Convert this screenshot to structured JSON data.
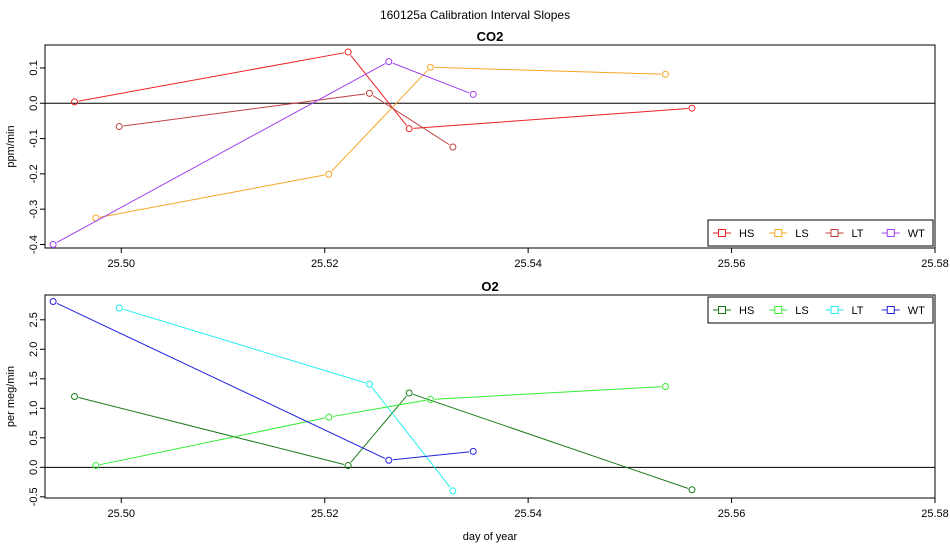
{
  "figure": {
    "title": "160125a   Calibration Interval Slopes"
  },
  "chart_data": [
    {
      "type": "line",
      "title": "CO2",
      "xlabel": "",
      "ylabel": "ppm/min",
      "xlim": [
        25.4925,
        25.58
      ],
      "ylim": [
        -0.41,
        0.165
      ],
      "xticks": [
        25.5,
        25.52,
        25.54,
        25.56,
        25.58
      ],
      "xtick_labels": [
        "25.50",
        "25.52",
        "25.54",
        "25.56",
        "25.58"
      ],
      "yticks": [
        -0.4,
        -0.3,
        -0.2,
        -0.1,
        0.0,
        0.1
      ],
      "ytick_labels": [
        "-0.4",
        "-0.3",
        "-0.2",
        "-0.1",
        "0.0",
        "0.1"
      ],
      "hline": 0,
      "legend_position": "bottom-right",
      "series": [
        {
          "name": "HS",
          "color": "#ee2222",
          "points": [
            [
              25.4954,
              0.004
            ],
            [
              25.5223,
              0.145
            ],
            [
              25.5283,
              -0.072
            ],
            [
              25.5561,
              -0.014
            ]
          ]
        },
        {
          "name": "LS",
          "color": "#f5a623",
          "points": [
            [
              25.4975,
              -0.325
            ],
            [
              25.5204,
              -0.201
            ],
            [
              25.5304,
              0.102
            ],
            [
              25.5535,
              0.082
            ]
          ]
        },
        {
          "name": "LT",
          "color": "#c04040",
          "points": [
            [
              25.4998,
              -0.066
            ],
            [
              25.5244,
              0.028
            ],
            [
              25.5326,
              -0.124
            ]
          ]
        },
        {
          "name": "WT",
          "color": "#a040ee",
          "points": [
            [
              25.4933,
              -0.4
            ],
            [
              25.5263,
              0.118
            ],
            [
              25.5346,
              0.025
            ]
          ]
        }
      ]
    },
    {
      "type": "line",
      "title": "O2",
      "xlabel": "day of year",
      "ylabel": "per meg/min",
      "xlim": [
        25.4925,
        25.58
      ],
      "ylim": [
        -0.52,
        2.92
      ],
      "xticks": [
        25.5,
        25.52,
        25.54,
        25.56,
        25.58
      ],
      "xtick_labels": [
        "25.50",
        "25.52",
        "25.54",
        "25.56",
        "25.58"
      ],
      "yticks": [
        -0.5,
        0.0,
        0.5,
        1.0,
        1.5,
        2.0,
        2.5
      ],
      "ytick_labels": [
        "-0.5",
        "0.0",
        "0.5",
        "1.0",
        "1.5",
        "2.0",
        "2.5"
      ],
      "hline": 0,
      "legend_position": "top-right",
      "series": [
        {
          "name": "HS",
          "color": "#1a7a1a",
          "points": [
            [
              25.4954,
              1.2
            ],
            [
              25.5223,
              0.03
            ],
            [
              25.5283,
              1.26
            ],
            [
              25.5561,
              -0.38
            ]
          ]
        },
        {
          "name": "LS",
          "color": "#33ee33",
          "points": [
            [
              25.4975,
              0.03
            ],
            [
              25.5204,
              0.85
            ],
            [
              25.5304,
              1.15
            ],
            [
              25.5535,
              1.37
            ]
          ]
        },
        {
          "name": "LT",
          "color": "#22eeee",
          "points": [
            [
              25.4998,
              2.7
            ],
            [
              25.5244,
              1.41
            ],
            [
              25.5326,
              -0.4
            ]
          ]
        },
        {
          "name": "WT",
          "color": "#2222dd",
          "points": [
            [
              25.4933,
              2.81
            ],
            [
              25.5263,
              0.12
            ],
            [
              25.5346,
              0.27
            ]
          ]
        }
      ]
    }
  ]
}
